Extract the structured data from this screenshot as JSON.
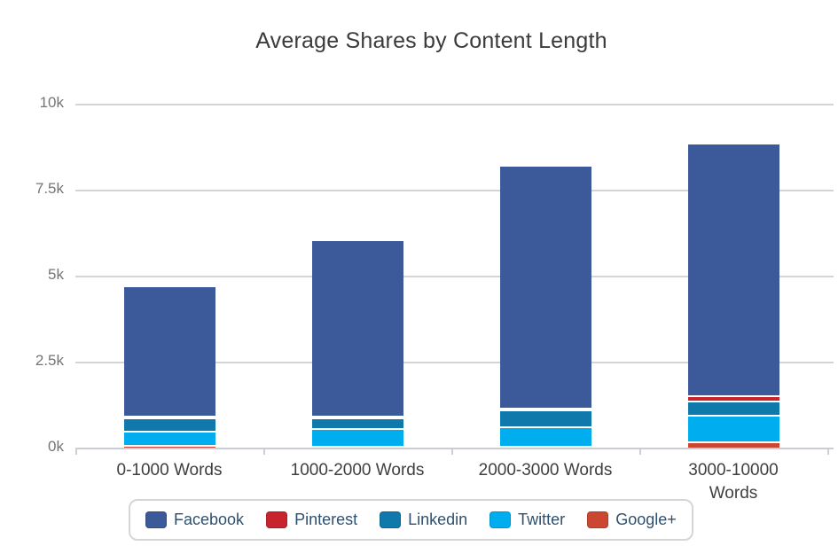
{
  "title": "Average Shares by Content Length",
  "chart_data": {
    "type": "bar",
    "stacked": true,
    "title": "Average Shares by Content Length",
    "xlabel": "",
    "ylabel": "",
    "categories": [
      "0-1000 Words",
      "1000-2000 Words",
      "2000-3000 Words",
      "3000-10000 Words"
    ],
    "series": [
      {
        "name": "Facebook",
        "color": "#3c5a99",
        "values": [
          3750,
          5070,
          7000,
          7300
        ]
      },
      {
        "name": "Pinterest",
        "color": "#c7242e",
        "values": [
          20,
          20,
          25,
          150
        ]
      },
      {
        "name": "Linkedin",
        "color": "#0f79ab",
        "values": [
          380,
          320,
          500,
          420
        ]
      },
      {
        "name": "Twitter",
        "color": "#00aeef",
        "values": [
          400,
          500,
          550,
          770
        ]
      },
      {
        "name": "Google+",
        "color": "#cc4732",
        "values": [
          90,
          60,
          60,
          180
        ]
      }
    ],
    "stack_order_bottom_to_top": [
      "Google+",
      "Twitter",
      "Linkedin",
      "Pinterest",
      "Facebook"
    ],
    "totals": [
      4640,
      5970,
      8135,
      8820
    ],
    "ylim": [
      0,
      10000
    ],
    "yticks": [
      {
        "value": 0,
        "label": "0k"
      },
      {
        "value": 2500,
        "label": "2.5k"
      },
      {
        "value": 5000,
        "label": "5k"
      },
      {
        "value": 7500,
        "label": "7.5k"
      },
      {
        "value": 10000,
        "label": "10k"
      }
    ],
    "grid": true,
    "legend_position": "bottom",
    "xlabel_wrap": [
      false,
      false,
      false,
      true
    ]
  },
  "colors": {
    "background": "#ffffff",
    "gridline": "#d4d4d4",
    "axis_line": "#c9cdd8",
    "title_text": "#3b3b3b",
    "y_label_text": "#757575",
    "x_label_text": "#3f3f3f",
    "legend_text": "#30506e",
    "legend_border": "#d6d6d6"
  }
}
